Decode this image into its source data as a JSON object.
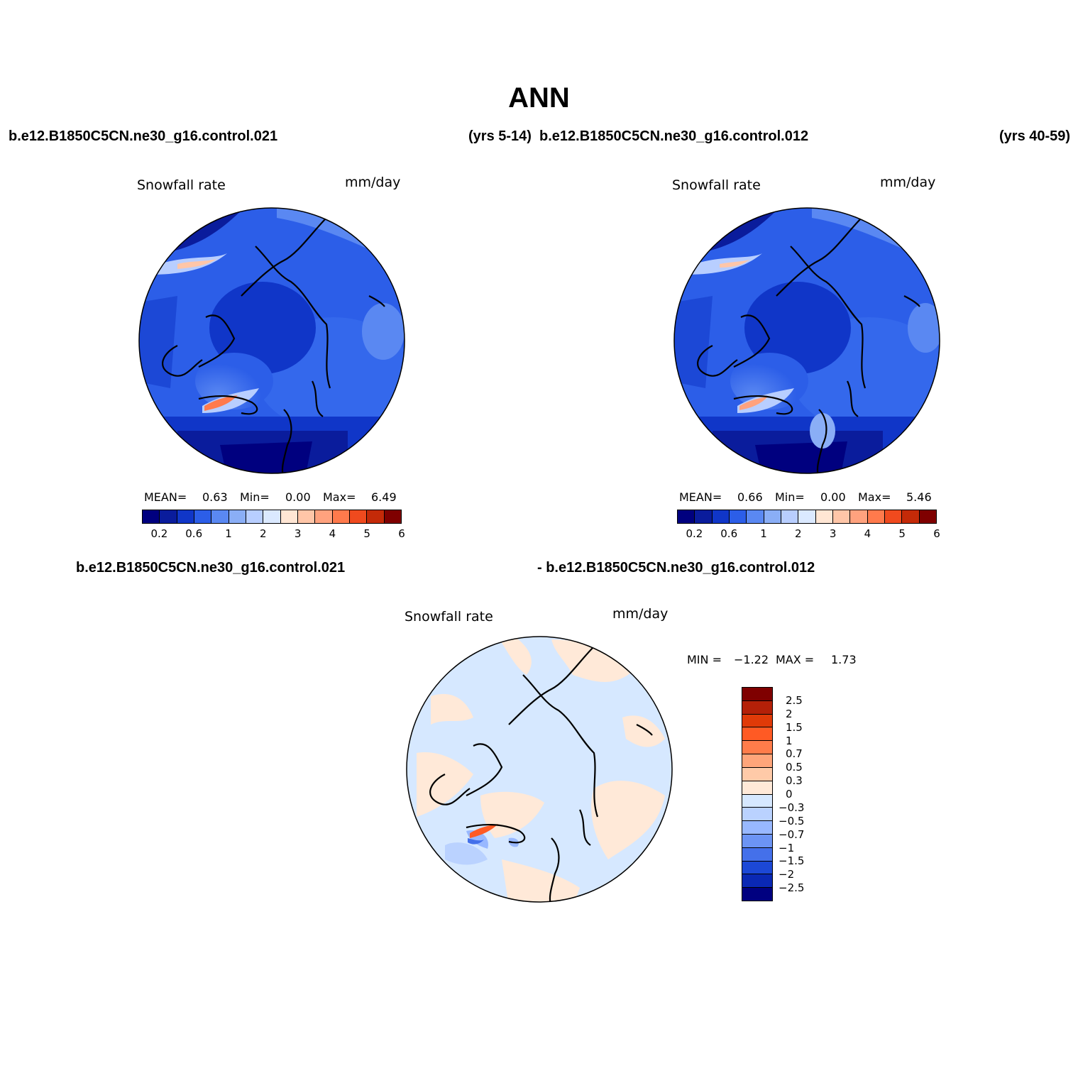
{
  "title": "ANN",
  "headers": {
    "top_left_case": "b.e12.B1850C5CN.ne30_g16.control.021",
    "top_left_years": "(yrs 5-14)",
    "top_right_case": "b.e12.B1850C5CN.ne30_g16.control.012",
    "top_right_years": "(yrs 40-59)",
    "diff_left": "b.e12.B1850C5CN.ne30_g16.control.021",
    "diff_right": "- b.e12.B1850C5CN.ne30_g16.control.012"
  },
  "panels": [
    {
      "variable": "Snowfall rate",
      "units": "mm/day",
      "mean_label": "MEAN=",
      "mean": "0.63",
      "min_label": "Min=",
      "min": "0.00",
      "max_label": "Max=",
      "max": "6.49"
    },
    {
      "variable": "Snowfall rate",
      "units": "mm/day",
      "mean_label": "MEAN=",
      "mean": "0.66",
      "min_label": "Min=",
      "min": "0.00",
      "max_label": "Max=",
      "max": "5.46"
    }
  ],
  "diff_panel": {
    "variable": "Snowfall rate",
    "units": "mm/day",
    "min_label": "MIN =",
    "min": "−1.22",
    "max_label": "MAX =",
    "max": "1.73"
  },
  "colorbar_abs": {
    "colors": [
      "#00007f",
      "#0a1c9c",
      "#1036c8",
      "#2c5ee8",
      "#5a88f2",
      "#8aaef6",
      "#b8ceff",
      "#dbe9ff",
      "#ffe6d4",
      "#ffc6a8",
      "#ffa27e",
      "#ff7a4c",
      "#f04a1e",
      "#c42a08",
      "#7f0000"
    ],
    "tick_labels": [
      "0.2",
      "0.6",
      "1",
      "2",
      "3",
      "4",
      "5",
      "6"
    ]
  },
  "colorbar_diff": {
    "colors_top_to_bottom": [
      "#7f0000",
      "#b42008",
      "#e03a08",
      "#ff5a24",
      "#ff7c4a",
      "#ffa57a",
      "#ffcaa8",
      "#ffe9d8",
      "#d6e8ff",
      "#bad2ff",
      "#98b8ff",
      "#6c94f4",
      "#4470ea",
      "#1c48d6",
      "#0a28b4",
      "#000080"
    ],
    "tick_labels": [
      "2.5",
      "2",
      "1.5",
      "1",
      "0.7",
      "0.5",
      "0.3",
      "0",
      "−0.3",
      "−0.5",
      "−0.7",
      "−1",
      "−1.5",
      "−2",
      "−2.5"
    ]
  }
}
